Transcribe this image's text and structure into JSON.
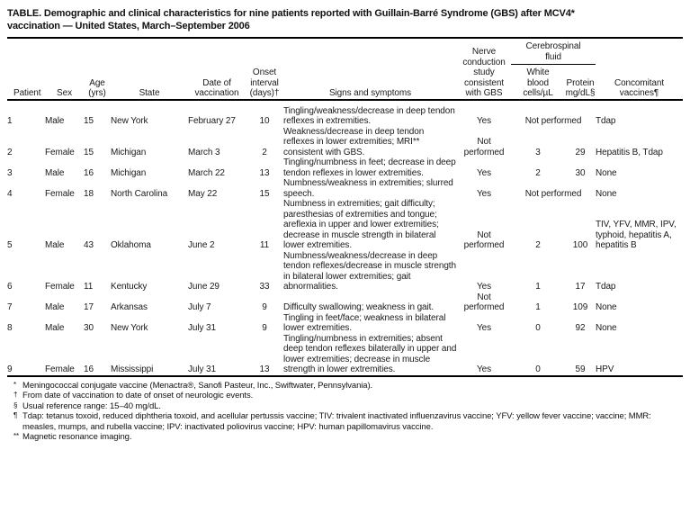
{
  "title": "TABLE. Demographic and clinical characteristics for nine patients reported with Guillain-Barré Syndrome (GBS) after MCV4*\nvaccination — United States, March–September 2006",
  "table": {
    "headers": {
      "patient": "Patient",
      "sex": "Sex",
      "age": "Age\n(yrs)",
      "state": "State",
      "date": "Date of\nvaccination",
      "onset": "Onset\ninterval\n(days)†",
      "signs": "Signs and symptoms",
      "nerve": "Nerve\nconduction\nstudy\nconsistent\nwith GBS",
      "csf_group": "Cerebrospinal\nfluid",
      "wbc": "White\nblood\ncells/µL",
      "protein": "Protein\nmg/dL§",
      "vaccines": "Concomitant\nvaccines¶"
    },
    "rows": [
      {
        "patient": "1",
        "sex": "Male",
        "age": "15",
        "state": "New York",
        "date": "February 27",
        "onset": "10",
        "signs": "Tingling/weakness/decrease in deep tendon reflexes in extremities.",
        "nerve": "Yes",
        "wbc": null,
        "protein": null,
        "csf_note": "Not performed",
        "vaccines": "Tdap"
      },
      {
        "patient": "2",
        "sex": "Female",
        "age": "15",
        "state": "Michigan",
        "date": "March 3",
        "onset": "2",
        "signs": "Weakness/decrease in deep tendon reflexes in lower extremities; MRI** consistent with GBS.",
        "nerve": "Not performed",
        "wbc": "3",
        "protein": "29",
        "csf_note": null,
        "vaccines": "Hepatitis B, Tdap"
      },
      {
        "patient": "3",
        "sex": "Male",
        "age": "16",
        "state": "Michigan",
        "date": "March 22",
        "onset": "13",
        "signs": "Tingling/numbness in feet; decrease in deep tendon reflexes in lower extremities.",
        "nerve": "Yes",
        "wbc": "2",
        "protein": "30",
        "csf_note": null,
        "vaccines": "None"
      },
      {
        "patient": "4",
        "sex": "Female",
        "age": "18",
        "state": "North Carolina",
        "date": "May 22",
        "onset": "15",
        "signs": "Numbness/weakness in extremities; slurred speech.",
        "nerve": "Yes",
        "wbc": null,
        "protein": null,
        "csf_note": "Not performed",
        "vaccines": "None"
      },
      {
        "patient": "5",
        "sex": "Male",
        "age": "43",
        "state": "Oklahoma",
        "date": "June 2",
        "onset": "11",
        "signs": "Numbness in extremities; gait difficulty; paresthesias of extremities and tongue; areflexia in upper and lower extremities; decrease in muscle strength in bilateral lower extremities.",
        "nerve": "Not performed",
        "wbc": "2",
        "protein": "100",
        "csf_note": null,
        "vaccines": "TIV, YFV, MMR, IPV, typhoid, hepatitis A, hepatitis B"
      },
      {
        "patient": "6",
        "sex": "Female",
        "age": "11",
        "state": "Kentucky",
        "date": "June 29",
        "onset": "33",
        "signs": "Numbness/weakness/decrease in deep tendon reflexes/decrease in muscle strength in bilateral lower extremities; gait abnormalities.",
        "nerve": "Yes",
        "wbc": "1",
        "protein": "17",
        "csf_note": null,
        "vaccines": "Tdap"
      },
      {
        "patient": "7",
        "sex": "Male",
        "age": "17",
        "state": "Arkansas",
        "date": "July 7",
        "onset": "9",
        "signs": "Difficulty swallowing; weakness in gait.",
        "nerve": "Not performed",
        "wbc": "1",
        "protein": "109",
        "csf_note": null,
        "vaccines": "None"
      },
      {
        "patient": "8",
        "sex": "Male",
        "age": "30",
        "state": "New York",
        "date": "July 31",
        "onset": "9",
        "signs": "Tingling in feet/face; weakness in bilateral lower extremities.",
        "nerve": "Yes",
        "wbc": "0",
        "protein": "92",
        "csf_note": null,
        "vaccines": "None"
      },
      {
        "patient": "9",
        "sex": "Female",
        "age": "16",
        "state": "Mississippi",
        "date": "July 31",
        "onset": "13",
        "signs": "Tingling/numbness in extremities; absent deep tendon reflexes bilaterally in upper and lower extremities; decrease in muscle strength in lower extremities.",
        "nerve": "Yes",
        "wbc": "0",
        "protein": "59",
        "csf_note": null,
        "vaccines": "HPV"
      }
    ]
  },
  "footnotes": [
    {
      "marker": "*",
      "text": "Meningococcal conjugate vaccine (Menactra®, Sanofi Pasteur, Inc., Swiftwater, Pennsylvania)."
    },
    {
      "marker": "†",
      "text": "From date of vaccination to date of onset of neurologic events."
    },
    {
      "marker": "§",
      "text": "Usual reference range: 15–40 mg/dL."
    },
    {
      "marker": "¶",
      "text": "Tdap: tetanus toxoid, reduced diphtheria toxoid, and acellular pertussis vaccine; TIV: trivalent inactivated influenzavirus vaccine; YFV: yellow fever vaccine; vaccine; MMR: measles, mumps, and rubella vaccine; IPV: inactivated poliovirus vaccine; HPV: human papillomavirus vaccine."
    },
    {
      "marker": "**",
      "text": "Magnetic resonance imaging."
    }
  ]
}
